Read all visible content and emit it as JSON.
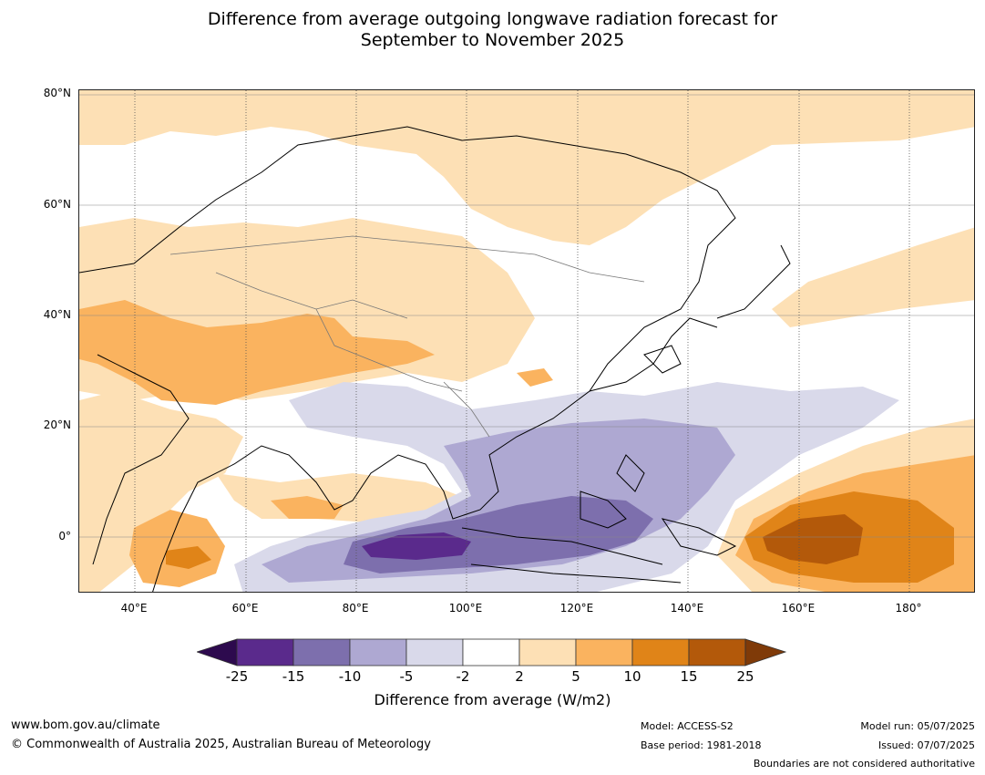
{
  "title": {
    "line1": "Difference from average outgoing longwave radiation forecast for",
    "line2": "September to November 2025"
  },
  "map": {
    "lat_labels": [
      "80°N",
      "60°N",
      "40°N",
      "20°N",
      "0°"
    ],
    "lon_labels": [
      "40°E",
      "60°E",
      "80°E",
      "100°E",
      "120°E",
      "140°E",
      "160°E",
      "180°"
    ],
    "extent": {
      "lon_min": 30,
      "lon_max": 192,
      "lat_min": -10,
      "lat_max": 81
    }
  },
  "colorbar": {
    "ticks": [
      "-25",
      "-15",
      "-10",
      "-5",
      "-2",
      "2",
      "5",
      "10",
      "15",
      "25"
    ],
    "colors": {
      "below": "#2d0a4e",
      "bins": [
        "#5a2a8c",
        "#7d6fad",
        "#aea8d2",
        "#d9d9ea",
        "#ffffff",
        "#fde0b5",
        "#fab35f",
        "#e08418",
        "#b3590a"
      ],
      "above": "#7f3a08"
    },
    "label": "Difference from average (W/m2)"
  },
  "footer": {
    "website": "www.bom.gov.au/climate",
    "copyright": "© Commonwealth of Australia 2025, Australian Bureau of Meteorology",
    "model": "Model: ACCESS-S2",
    "base_period": "Base period: 1981-2018",
    "model_run": "Model run: 05/07/2025",
    "issued": "Issued: 07/07/2025",
    "disclaimer": "Boundaries are not considered authoritative"
  }
}
